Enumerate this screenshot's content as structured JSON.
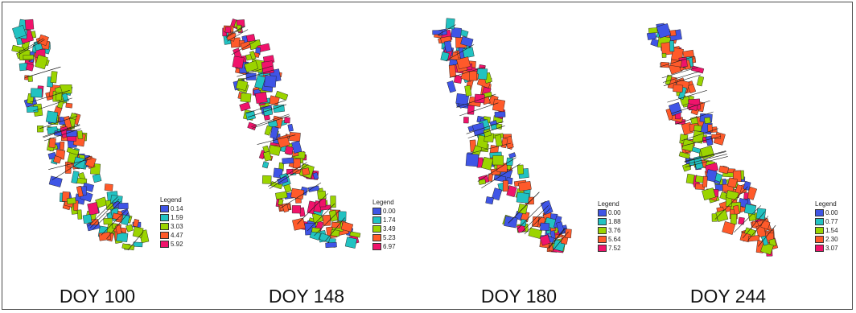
{
  "colors": {
    "class_1": "#3f55e6",
    "class_2": "#22c2c2",
    "class_3": "#9bd400",
    "class_4": "#ff5a2a",
    "class_5": "#f0136b",
    "outline": "#1a1a1a"
  },
  "panels": [
    {
      "label": "DOY 100",
      "legend_title": "Legend",
      "legend_values": [
        "0.14",
        "1.59",
        "3.03",
        "4.47",
        "5.92"
      ],
      "class_weights": [
        0.15,
        0.17,
        0.33,
        0.3,
        0.05
      ]
    },
    {
      "label": "DOY 148",
      "legend_title": "Legend",
      "legend_values": [
        "0.00",
        "1.74",
        "3.49",
        "5.23",
        "6.97"
      ],
      "class_weights": [
        0.17,
        0.14,
        0.25,
        0.24,
        0.2
      ]
    },
    {
      "label": "DOY 180",
      "legend_title": "Legend",
      "legend_values": [
        "0.00",
        "1.88",
        "3.76",
        "5.64",
        "7.52"
      ],
      "class_weights": [
        0.28,
        0.17,
        0.18,
        0.28,
        0.09
      ]
    },
    {
      "label": "DOY 244",
      "legend_title": "Legend",
      "legend_values": [
        "0.00",
        "0.77",
        "1.54",
        "2.30",
        "3.07"
      ],
      "class_weights": [
        0.13,
        0.11,
        0.24,
        0.4,
        0.12
      ]
    }
  ]
}
